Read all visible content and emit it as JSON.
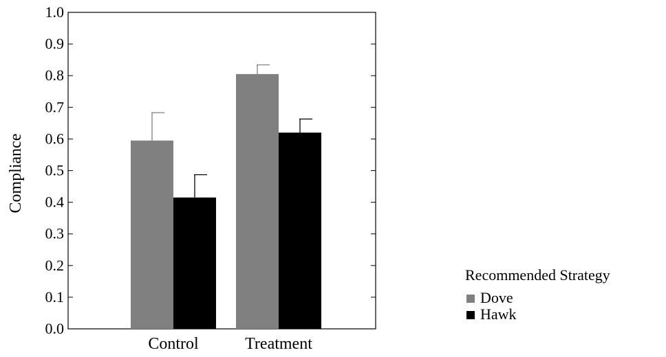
{
  "chart_data": {
    "type": "bar",
    "title": "",
    "xlabel": "",
    "ylabel": "Compliance",
    "ylim": [
      0.0,
      1.0
    ],
    "yticks": [
      "0.0",
      "0.1",
      "0.2",
      "0.3",
      "0.4",
      "0.5",
      "0.6",
      "0.7",
      "0.8",
      "0.9",
      "1.0"
    ],
    "categories": [
      "Control",
      "Treatment"
    ],
    "series": [
      {
        "name": "Dove",
        "color": "#808080",
        "values": [
          0.595,
          0.805
        ],
        "errors": [
          0.088,
          0.029
        ]
      },
      {
        "name": "Hawk",
        "color": "#000000",
        "values": [
          0.415,
          0.62
        ],
        "errors": [
          0.072,
          0.043
        ]
      }
    ],
    "legend": {
      "title": "Recommended Strategy",
      "placement": "right"
    },
    "grid": false
  }
}
